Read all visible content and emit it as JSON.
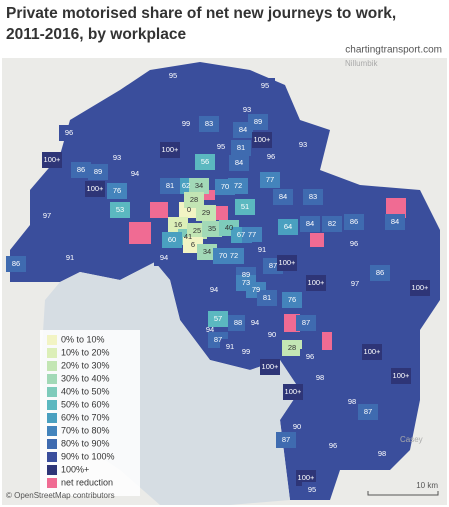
{
  "map": {
    "title_lines": [
      "Private motorised share of net new journeys to work,",
      "2011-2016, by workplace"
    ],
    "source": "chartingtransport.com",
    "place_names": [
      "Nillumbik",
      "Casey"
    ],
    "legend": [
      {
        "label": "0% to 10%",
        "color": "#f2f4c4"
      },
      {
        "label": "10% to 20%",
        "color": "#dcefb8"
      },
      {
        "label": "20% to 30%",
        "color": "#c3e6b4"
      },
      {
        "label": "30% to 40%",
        "color": "#a2d9b7"
      },
      {
        "label": "40% to 50%",
        "color": "#7ecbbb"
      },
      {
        "label": "50% to 60%",
        "color": "#5bb8c0"
      },
      {
        "label": "60% to 70%",
        "color": "#4aa0c0"
      },
      {
        "label": "70% to 80%",
        "color": "#4484bc"
      },
      {
        "label": "80% to 90%",
        "color": "#3f6bb0"
      },
      {
        "label": "90% to 100%",
        "color": "#3a4e9c"
      },
      {
        "label": "100%+",
        "color": "#2e3577"
      },
      {
        "label": "net reduction",
        "color": "#f06b93"
      }
    ],
    "region_labels": [
      "95",
      "95",
      "93",
      "89",
      "84",
      "100+",
      "83",
      "99",
      "96",
      "93",
      "95",
      "81",
      "100+",
      "100+",
      "93",
      "94",
      "56",
      "84",
      "86",
      "96",
      "100+",
      "62",
      "34",
      "70",
      "72",
      "81",
      "76",
      "89",
      "97",
      "53",
      "0",
      "28",
      "29",
      "51",
      "84",
      "83",
      "77",
      "16",
      "41",
      "60",
      "25",
      "35",
      "40",
      "67",
      "77",
      "91",
      "86",
      "6",
      "34",
      "70",
      "72",
      "94",
      "64",
      "84",
      "82",
      "86",
      "84",
      "96",
      "86",
      "91",
      "87",
      "100+",
      "89",
      "73",
      "79",
      "81",
      "94",
      "76",
      "100+",
      "100+",
      "97",
      "94",
      "88",
      "87",
      "57",
      "94",
      "87",
      "90",
      "91",
      "99",
      "100+",
      "28",
      "96",
      "100+",
      "98",
      "100+",
      "98",
      "87",
      "100+",
      "90",
      "87",
      "96",
      "98",
      "100+",
      "95"
    ],
    "attribution": "© OpenStreetMap contributors",
    "scale_label": "10 km"
  }
}
